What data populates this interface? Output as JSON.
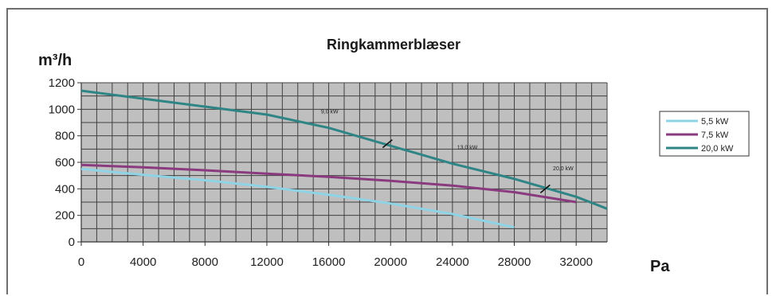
{
  "chart_data": {
    "type": "line",
    "title": "Ringkammerblæser",
    "ylabel": "m³/h",
    "xlabel": "Pa",
    "xlim": [
      0,
      34000
    ],
    "ylim": [
      0,
      1200
    ],
    "xticks": [
      0,
      4000,
      8000,
      12000,
      16000,
      20000,
      24000,
      28000,
      32000
    ],
    "yticks": [
      0,
      200,
      400,
      600,
      800,
      1000,
      1200
    ],
    "x_minor_step": 1000,
    "y_minor_step": 100,
    "grid": true,
    "legend_position": "right",
    "colors": {
      "plot_background": "#bfbfbf",
      "grid": "#404040",
      "series": [
        "#8fd3e6",
        "#8a3a7e",
        "#2f8585"
      ]
    },
    "series": [
      {
        "name": "5,5 kW",
        "x": [
          0,
          4000,
          8000,
          12000,
          16000,
          20000,
          24000,
          28000
        ],
        "y": [
          550,
          505,
          465,
          415,
          355,
          290,
          210,
          110
        ]
      },
      {
        "name": "7,5 kW",
        "x": [
          0,
          4000,
          8000,
          12000,
          16000,
          20000,
          24000,
          28000,
          32000
        ],
        "y": [
          580,
          562,
          540,
          515,
          490,
          460,
          425,
          375,
          300
        ]
      },
      {
        "name": "20,0 kW",
        "x": [
          0,
          4000,
          8000,
          12000,
          16000,
          20000,
          24000,
          28000,
          32000,
          34000
        ],
        "y": [
          1140,
          1080,
          1020,
          960,
          860,
          725,
          590,
          475,
          340,
          250
        ]
      }
    ],
    "annotations": [
      {
        "text": "9,0 kW",
        "x": 15500,
        "y": 970
      },
      {
        "text": "13,0 kW",
        "x": 24300,
        "y": 700
      },
      {
        "text": "20,0 kW",
        "x": 30500,
        "y": 540
      }
    ],
    "markers": [
      {
        "x": 19800,
        "y": 740
      },
      {
        "x": 30000,
        "y": 400
      }
    ]
  }
}
